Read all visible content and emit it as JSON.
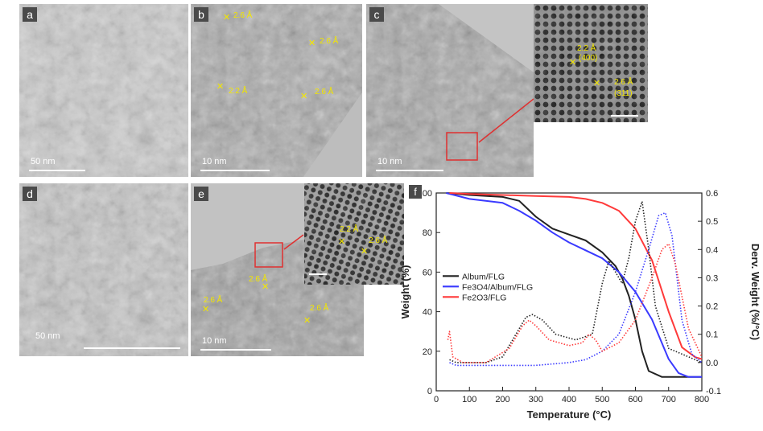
{
  "figure": {
    "panels": [
      {
        "label": "a",
        "scale": "50 nm",
        "annotations": []
      },
      {
        "label": "b",
        "scale": "10 nm",
        "annotations": [
          {
            "text": "2.6 Å"
          },
          {
            "text": "2.6 Å"
          },
          {
            "text": "2.2 Å"
          },
          {
            "text": "2.6 Å"
          }
        ]
      },
      {
        "label": "c",
        "scale": "10 nm",
        "annotations": [
          {
            "text": "2.2 Å"
          },
          {
            "text": "(400)"
          },
          {
            "text": "2.6 Å"
          },
          {
            "text": "(311)"
          }
        ]
      },
      {
        "label": "d",
        "scale": "50 nm",
        "annotations": []
      },
      {
        "label": "e",
        "scale": "10 nm",
        "annotations": [
          {
            "text": "2.2 Å"
          },
          {
            "text": "2.6 Å"
          },
          {
            "text": "2.6 Å"
          },
          {
            "text": "2.6 Å"
          },
          {
            "text": "2.6 Å"
          }
        ]
      },
      {
        "label": "f"
      }
    ]
  },
  "colors": {
    "black": "#222222",
    "blue": "#3a3aff",
    "red": "#ff3a3a",
    "annotation": "#f2e600",
    "box": "#e03030"
  },
  "chart_data": {
    "type": "line",
    "title": "",
    "xlabel": "Temperature (°C)",
    "ylabel": "Weight (%)",
    "y2label": "Derv. Weight (%/°C)",
    "xlim": [
      0,
      800
    ],
    "ylim": [
      0,
      100
    ],
    "y2lim": [
      -0.1,
      0.6
    ],
    "xticks": [
      "0",
      "100",
      "200",
      "300",
      "400",
      "500",
      "600",
      "700",
      "800"
    ],
    "yticks": [
      "0",
      "20",
      "40",
      "60",
      "80",
      "100"
    ],
    "y2ticks": [
      "-0.1",
      "0.0",
      "0.1",
      "0.2",
      "0.3",
      "0.4",
      "0.5",
      "0.6"
    ],
    "legend_position": "middle-left",
    "series": [
      {
        "name": "Album/FLG",
        "color": "#222222",
        "style": "solid",
        "axis": "weight",
        "x": [
          30,
          100,
          200,
          250,
          300,
          350,
          400,
          450,
          500,
          540,
          560,
          580,
          600,
          620,
          640,
          680,
          720,
          800
        ],
        "y": [
          100,
          99,
          98,
          96,
          88,
          82,
          79,
          76,
          70,
          63,
          57,
          48,
          36,
          20,
          10,
          7,
          7,
          7
        ]
      },
      {
        "name": "Fe3O4/Album/FLG",
        "color": "#3a3aff",
        "style": "solid",
        "axis": "weight",
        "x": [
          30,
          100,
          200,
          250,
          300,
          350,
          400,
          450,
          500,
          550,
          600,
          650,
          700,
          730,
          760,
          800
        ],
        "y": [
          100,
          97,
          95,
          91,
          86,
          80,
          75,
          71,
          67,
          60,
          50,
          36,
          16,
          9,
          7,
          7
        ]
      },
      {
        "name": "Fe2O3/FLG",
        "color": "#ff3a3a",
        "style": "solid",
        "axis": "weight",
        "x": [
          40,
          100,
          200,
          300,
          400,
          450,
          500,
          550,
          600,
          650,
          700,
          740,
          780,
          800
        ],
        "y": [
          100,
          99.5,
          99,
          98.5,
          98,
          97,
          95,
          91,
          82,
          66,
          40,
          22,
          17,
          16
        ]
      },
      {
        "name": "Album/FLG",
        "color": "#222222",
        "style": "dotted",
        "axis": "derivative",
        "x": [
          40,
          60,
          100,
          150,
          200,
          240,
          270,
          290,
          320,
          360,
          420,
          470,
          500,
          520,
          540,
          560,
          580,
          600,
          620,
          640,
          660,
          700,
          760,
          800
        ],
        "y": [
          0.01,
          0.0,
          0.0,
          0.0,
          0.02,
          0.1,
          0.16,
          0.17,
          0.15,
          0.1,
          0.08,
          0.1,
          0.28,
          0.36,
          0.32,
          0.28,
          0.37,
          0.5,
          0.57,
          0.4,
          0.2,
          0.05,
          0.02,
          0.0
        ]
      },
      {
        "name": "Fe3O4/Album/FLG",
        "color": "#3a3aff",
        "style": "dotted",
        "axis": "derivative",
        "x": [
          40,
          60,
          100,
          200,
          300,
          400,
          450,
          500,
          550,
          600,
          640,
          670,
          690,
          710,
          740,
          770,
          800
        ],
        "y": [
          0.0,
          -0.01,
          -0.01,
          -0.01,
          -0.01,
          0.0,
          0.01,
          0.04,
          0.1,
          0.25,
          0.4,
          0.52,
          0.53,
          0.45,
          0.15,
          0.03,
          0.0
        ]
      },
      {
        "name": "Fe2O3/FLG",
        "color": "#ff3a3a",
        "style": "dotted",
        "axis": "derivative",
        "x": [
          35,
          40,
          50,
          80,
          150,
          220,
          260,
          280,
          300,
          340,
          400,
          440,
          460,
          480,
          500,
          550,
          600,
          650,
          680,
          700,
          720,
          760,
          800
        ],
        "y": [
          0.08,
          0.11,
          0.02,
          0.0,
          0.0,
          0.05,
          0.13,
          0.15,
          0.13,
          0.08,
          0.06,
          0.07,
          0.1,
          0.08,
          0.04,
          0.07,
          0.15,
          0.3,
          0.4,
          0.42,
          0.35,
          0.12,
          0.02
        ]
      }
    ]
  }
}
